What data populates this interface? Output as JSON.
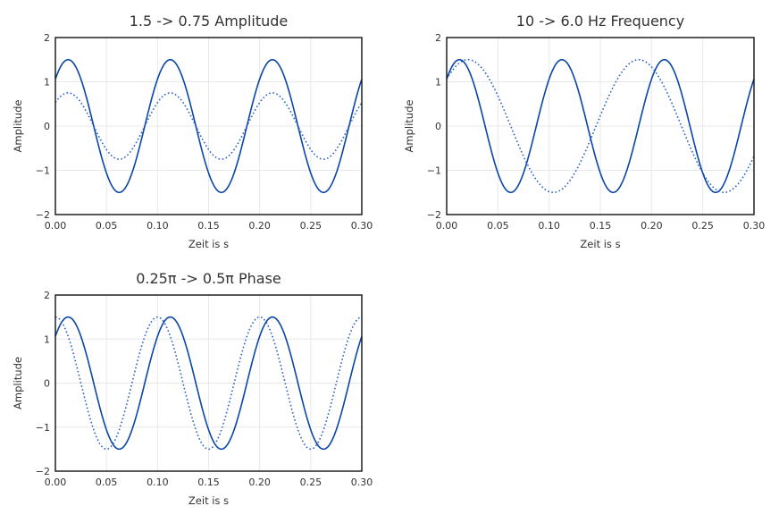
{
  "chart_data": [
    {
      "type": "line",
      "title": "1.5 -> 0.75 Amplitude",
      "xlabel": "Zeit is s",
      "ylabel": "Amplitude",
      "xlim": [
        0,
        0.3
      ],
      "ylim": [
        -2,
        2
      ],
      "xticks": [
        "0.00",
        "0.05",
        "0.10",
        "0.15",
        "0.20",
        "0.25",
        "0.30"
      ],
      "yticks": [
        "−2",
        "−1",
        "0",
        "1",
        "2"
      ],
      "grid": true,
      "series": [
        {
          "style": "solid",
          "amplitude": 1.5,
          "frequency_hz": 10,
          "phase_rad": 0.7854
        },
        {
          "style": "dotted",
          "amplitude": 0.75,
          "frequency_hz": 10,
          "phase_rad": 0.7854
        }
      ]
    },
    {
      "type": "line",
      "title": "10 -> 6.0 Hz Frequency",
      "xlabel": "Zeit is s",
      "ylabel": "Amplitude",
      "xlim": [
        0,
        0.3
      ],
      "ylim": [
        -2,
        2
      ],
      "xticks": [
        "0.00",
        "0.05",
        "0.10",
        "0.15",
        "0.20",
        "0.25",
        "0.30"
      ],
      "yticks": [
        "−2",
        "−1",
        "0",
        "1",
        "2"
      ],
      "grid": true,
      "series": [
        {
          "style": "solid",
          "amplitude": 1.5,
          "frequency_hz": 10,
          "phase_rad": 0.7854
        },
        {
          "style": "dotted",
          "amplitude": 1.5,
          "frequency_hz": 6.0,
          "phase_rad": 0.7854
        }
      ]
    },
    {
      "type": "line",
      "title": "0.25π -> 0.5π Phase",
      "xlabel": "Zeit is s",
      "ylabel": "Amplitude",
      "xlim": [
        0,
        0.3
      ],
      "ylim": [
        -2,
        2
      ],
      "xticks": [
        "0.00",
        "0.05",
        "0.10",
        "0.15",
        "0.20",
        "0.25",
        "0.30"
      ],
      "yticks": [
        "−2",
        "−1",
        "0",
        "1",
        "2"
      ],
      "grid": true,
      "series": [
        {
          "style": "solid",
          "amplitude": 1.5,
          "frequency_hz": 10,
          "phase_rad": 0.7854
        },
        {
          "style": "dotted",
          "amplitude": 1.5,
          "frequency_hz": 10,
          "phase_rad": 1.5708
        }
      ]
    }
  ],
  "colors": {
    "solid_line": "#0a46a8",
    "dotted_line": "#2a62c4",
    "axis": "#111111",
    "grid": "#e8e8e8",
    "text": "#333333"
  }
}
